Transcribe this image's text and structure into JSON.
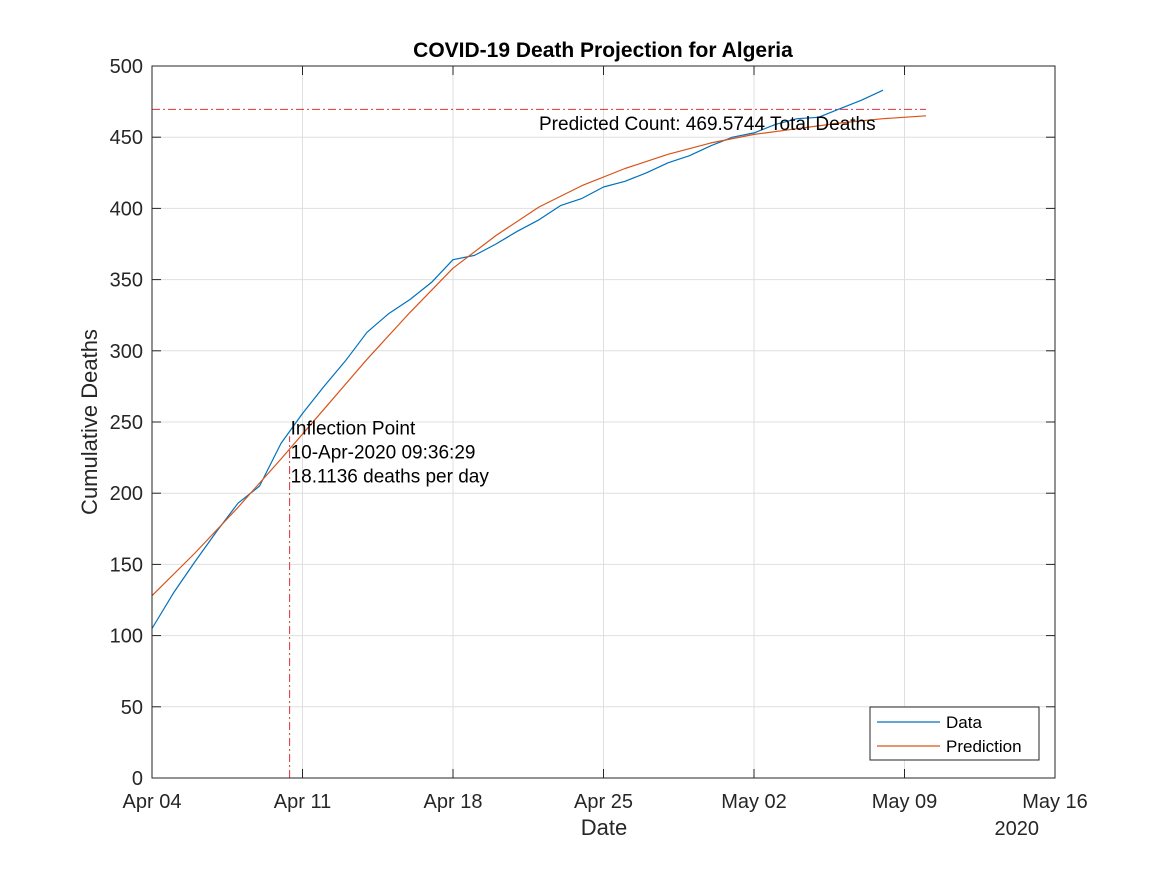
{
  "chart_data": {
    "type": "line",
    "title": "COVID-19 Death Projection for Algeria",
    "xlabel": "Date",
    "ylabel": "Cumulative Deaths",
    "year_label": "2020",
    "x_range": [
      "2020-04-04",
      "2020-05-16"
    ],
    "x_ticks": [
      {
        "date": "2020-04-04",
        "label": "Apr 04"
      },
      {
        "date": "2020-04-11",
        "label": "Apr 11"
      },
      {
        "date": "2020-04-18",
        "label": "Apr 18"
      },
      {
        "date": "2020-04-25",
        "label": "Apr 25"
      },
      {
        "date": "2020-05-02",
        "label": "May 02"
      },
      {
        "date": "2020-05-09",
        "label": "May 09"
      },
      {
        "date": "2020-05-16",
        "label": "May 16"
      }
    ],
    "ylim": [
      0,
      500
    ],
    "y_ticks": [
      0,
      50,
      100,
      150,
      200,
      250,
      300,
      350,
      400,
      450,
      500
    ],
    "grid": true,
    "legend_position": "bottom-right",
    "series": [
      {
        "name": "Data",
        "color": "#0072BD",
        "points": [
          {
            "x": "2020-04-04",
            "y": 105
          },
          {
            "x": "2020-04-05",
            "y": 130
          },
          {
            "x": "2020-04-06",
            "y": 152
          },
          {
            "x": "2020-04-07",
            "y": 173
          },
          {
            "x": "2020-04-08",
            "y": 193
          },
          {
            "x": "2020-04-09",
            "y": 205
          },
          {
            "x": "2020-04-10",
            "y": 235
          },
          {
            "x": "2020-04-11",
            "y": 256
          },
          {
            "x": "2020-04-12",
            "y": 275
          },
          {
            "x": "2020-04-13",
            "y": 293
          },
          {
            "x": "2020-04-14",
            "y": 313
          },
          {
            "x": "2020-04-15",
            "y": 326
          },
          {
            "x": "2020-04-16",
            "y": 336
          },
          {
            "x": "2020-04-17",
            "y": 348
          },
          {
            "x": "2020-04-18",
            "y": 364
          },
          {
            "x": "2020-04-19",
            "y": 367
          },
          {
            "x": "2020-04-20",
            "y": 375
          },
          {
            "x": "2020-04-21",
            "y": 384
          },
          {
            "x": "2020-04-22",
            "y": 392
          },
          {
            "x": "2020-04-23",
            "y": 402
          },
          {
            "x": "2020-04-24",
            "y": 407
          },
          {
            "x": "2020-04-25",
            "y": 415
          },
          {
            "x": "2020-04-26",
            "y": 419
          },
          {
            "x": "2020-04-27",
            "y": 425
          },
          {
            "x": "2020-04-28",
            "y": 432
          },
          {
            "x": "2020-04-29",
            "y": 437
          },
          {
            "x": "2020-04-30",
            "y": 444
          },
          {
            "x": "2020-05-01",
            "y": 450
          },
          {
            "x": "2020-05-02",
            "y": 453
          },
          {
            "x": "2020-05-03",
            "y": 459
          },
          {
            "x": "2020-05-04",
            "y": 463
          },
          {
            "x": "2020-05-05",
            "y": 464
          },
          {
            "x": "2020-05-06",
            "y": 470
          },
          {
            "x": "2020-05-07",
            "y": 476
          },
          {
            "x": "2020-05-08",
            "y": 483
          }
        ]
      },
      {
        "name": "Prediction",
        "color": "#D95319",
        "points": [
          {
            "x": "2020-04-04",
            "y": 128
          },
          {
            "x": "2020-04-06",
            "y": 158
          },
          {
            "x": "2020-04-08",
            "y": 190
          },
          {
            "x": "2020-04-10",
            "y": 224
          },
          {
            "x": "2020-04-12",
            "y": 259
          },
          {
            "x": "2020-04-14",
            "y": 294
          },
          {
            "x": "2020-04-16",
            "y": 327
          },
          {
            "x": "2020-04-18",
            "y": 358
          },
          {
            "x": "2020-04-20",
            "y": 381
          },
          {
            "x": "2020-04-22",
            "y": 401
          },
          {
            "x": "2020-04-24",
            "y": 416
          },
          {
            "x": "2020-04-26",
            "y": 428
          },
          {
            "x": "2020-04-28",
            "y": 438
          },
          {
            "x": "2020-04-30",
            "y": 446
          },
          {
            "x": "2020-05-02",
            "y": 452
          },
          {
            "x": "2020-05-04",
            "y": 456
          },
          {
            "x": "2020-05-06",
            "y": 460
          },
          {
            "x": "2020-05-08",
            "y": 463
          },
          {
            "x": "2020-05-10",
            "y": 465
          }
        ]
      }
    ],
    "reference_lines": [
      {
        "orientation": "horizontal",
        "y": 469.5744,
        "x_from": "2020-04-04",
        "x_to": "2020-05-10",
        "color": "#e0313a",
        "style": "dash-dot"
      },
      {
        "orientation": "vertical",
        "x": "2020-04-10T09:36:29",
        "y_from": 0,
        "y_to": 240,
        "color": "#e0313a",
        "style": "dash-dot"
      }
    ],
    "annotations": [
      {
        "id": "predicted",
        "lines": [
          "Predicted Count: 469.5744 Total Deaths"
        ],
        "x": "2020-04-22",
        "y": 460
      },
      {
        "id": "inflection",
        "lines": [
          "Inflection Point",
          "10-Apr-2020 09:36:29",
          "18.1136 deaths per day"
        ],
        "x": "2020-04-10T09:36:29",
        "y": 246
      }
    ]
  }
}
